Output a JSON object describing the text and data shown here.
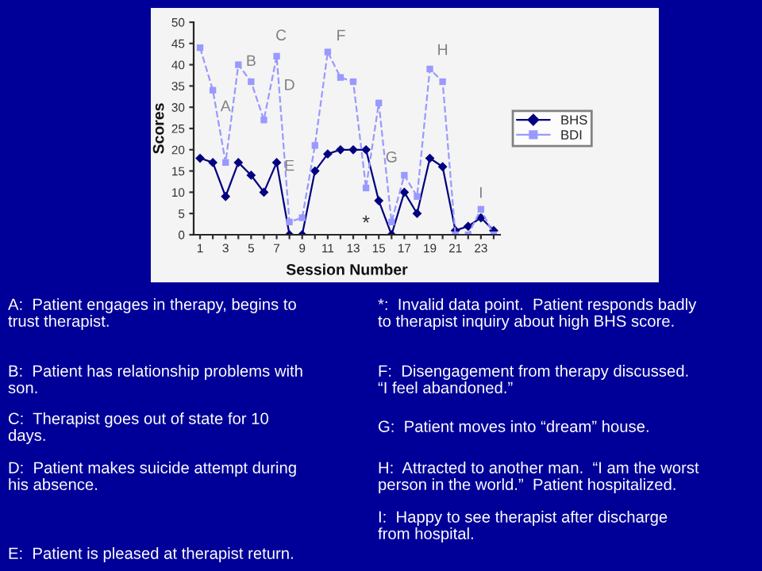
{
  "chart_data": {
    "type": "line",
    "xlabel": "Session Number",
    "ylabel": "Scores",
    "x": [
      1,
      2,
      3,
      4,
      5,
      6,
      7,
      8,
      9,
      10,
      11,
      12,
      13,
      14,
      15,
      16,
      17,
      18,
      19,
      20,
      21,
      22,
      23,
      24
    ],
    "series": [
      {
        "name": "BHS",
        "color": "#000080",
        "marker": "diamond",
        "line_style": "solid",
        "values": [
          18,
          17,
          9,
          17,
          14,
          10,
          17,
          0,
          0,
          15,
          19,
          20,
          20,
          20,
          8,
          0,
          10,
          5,
          18,
          16,
          1,
          2,
          4,
          1
        ]
      },
      {
        "name": "BDI",
        "color": "#9999ff",
        "marker": "square",
        "line_style": "dashed",
        "values": [
          44,
          34,
          17,
          40,
          36,
          27,
          42,
          3,
          4,
          21,
          43,
          37,
          36,
          11,
          31,
          3,
          14,
          9,
          39,
          36,
          0,
          0,
          6,
          0
        ]
      }
    ],
    "xlim": [
      0.5,
      24.5
    ],
    "xticks": [
      1,
      {
        "value": 2,
        "label": null
      },
      3,
      {
        "value": 4,
        "label": null
      },
      5,
      {
        "value": 6,
        "label": null
      },
      7,
      {
        "value": 8,
        "label": null
      },
      9,
      {
        "value": 10,
        "label": null
      },
      11,
      {
        "value": 12,
        "label": null
      },
      13,
      {
        "value": 14,
        "label": null
      },
      15,
      {
        "value": 16,
        "label": null
      },
      17,
      {
        "value": 18,
        "label": null
      },
      19,
      {
        "value": 20,
        "label": null
      },
      21,
      {
        "value": 22,
        "label": null
      },
      23,
      {
        "value": 24,
        "label": null
      }
    ],
    "ylim": [
      0,
      50
    ],
    "yticks": [
      0,
      5,
      10,
      15,
      20,
      25,
      30,
      35,
      40,
      45,
      50
    ],
    "grid": false,
    "legend": "right",
    "annotations": [
      {
        "text": "A",
        "x": 3,
        "y": 30
      },
      {
        "text": "B",
        "x": 5,
        "y": 36
      },
      {
        "text": "C",
        "x": 7,
        "y": 42
      },
      "D",
      {
        "text": "E",
        "x": 8,
        "y": 16
      },
      {
        "text": "F",
        "x": 11,
        "y": 43
      },
      {
        "text": "G",
        "x": 16,
        "y": 18
      },
      {
        "text": "H",
        "x": 20,
        "y": 36
      },
      {
        "text": "I",
        "x": 23,
        "y": 6
      },
      "*",
      "A:  Patient engages in therapy, begins to\ntrust therapist.",
      "B:  Patient has relationship problems with\nson.",
      "C:  Therapist goes out of state for 10\ndays.",
      "D:  Patient makes suicide attempt during\nhis absence.",
      "E:  Patient is pleased at therapist return.",
      "*:  Invalid data point.  Patient responds badly\nto therapist inquiry about high BHS score.",
      "F:  Disengagement from therapy discussed.\n“I feel abandoned.”",
      "G:  Patient moves into “dream” house.",
      "H:  Attracted to another man.  “I am the worst\nperson in the world.”  Patient hospitalized.",
      "I:  Happy to see therapist after discharge\nfrom hospital."
    ]
  }
}
